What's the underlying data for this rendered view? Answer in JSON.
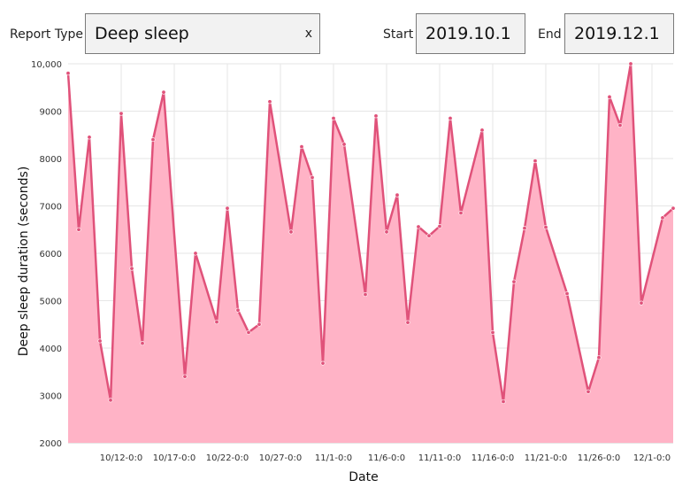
{
  "toolbar": {
    "report_type_label": "Report Type",
    "report_type_value": "Deep sleep",
    "clear_label": "x",
    "start_label": "Start",
    "start_value": "2019.10.1",
    "end_label": "End",
    "end_value": "2019.12.1"
  },
  "colors": {
    "line": "#e0527a",
    "fill": "#ffb3c6",
    "grid": "#e6e6e6"
  },
  "chart_data": {
    "type": "area",
    "xlabel": "Date",
    "ylabel": "Deep sleep duration (seconds)",
    "ylim": [
      2000,
      10000
    ],
    "yticks": [
      2000,
      3000,
      4000,
      5000,
      6000,
      7000,
      8000,
      9000,
      10000
    ],
    "ytick_labels": [
      "2000",
      "3000",
      "4000",
      "5000",
      "6000",
      "7000",
      "8000",
      "9000",
      "10,000"
    ],
    "xlim": [
      "2019-10-07",
      "2019-12-03"
    ],
    "xticks": [
      {
        "date": "2019-10-12",
        "label": "10/12-0:0"
      },
      {
        "date": "2019-10-17",
        "label": "10/17-0:0"
      },
      {
        "date": "2019-10-22",
        "label": "10/22-0:0"
      },
      {
        "date": "2019-10-27",
        "label": "10/27-0:0"
      },
      {
        "date": "2019-11-01",
        "label": "11/1-0:0"
      },
      {
        "date": "2019-11-06",
        "label": "11/6-0:0"
      },
      {
        "date": "2019-11-11",
        "label": "11/11-0:0"
      },
      {
        "date": "2019-11-16",
        "label": "11/16-0:0"
      },
      {
        "date": "2019-11-21",
        "label": "11/21-0:0"
      },
      {
        "date": "2019-11-26",
        "label": "11/26-0:0"
      },
      {
        "date": "2019-12-01",
        "label": "12/1-0:0"
      }
    ],
    "grid": true,
    "series": [
      {
        "x": [
          "2019-10-07",
          "2019-10-08",
          "2019-10-09",
          "2019-10-10",
          "2019-10-11",
          "2019-10-12",
          "2019-10-13",
          "2019-10-14",
          "2019-10-15",
          "2019-10-16",
          "2019-10-18",
          "2019-10-19",
          "2019-10-21",
          "2019-10-22",
          "2019-10-23",
          "2019-10-24",
          "2019-10-25",
          "2019-10-26",
          "2019-10-28",
          "2019-10-29",
          "2019-10-30",
          "2019-10-31",
          "2019-11-01",
          "2019-11-02",
          "2019-11-04",
          "2019-11-05",
          "2019-11-06",
          "2019-11-07",
          "2019-11-08",
          "2019-11-09",
          "2019-11-10",
          "2019-11-11",
          "2019-11-12",
          "2019-11-13",
          "2019-11-15",
          "2019-11-16",
          "2019-11-17",
          "2019-11-18",
          "2019-11-19",
          "2019-11-20",
          "2019-11-21",
          "2019-11-23",
          "2019-11-25",
          "2019-11-26",
          "2019-11-27",
          "2019-11-28",
          "2019-11-29",
          "2019-11-30",
          "2019-12-02",
          "2019-12-03"
        ],
        "values": [
          9800,
          6500,
          8450,
          4150,
          2900,
          8950,
          5680,
          4100,
          8400,
          9400,
          3400,
          6000,
          4550,
          6950,
          4800,
          4330,
          4500,
          9200,
          6450,
          8250,
          7600,
          3680,
          8850,
          8300,
          5130,
          8900,
          6450,
          7230,
          4540,
          6560,
          6370,
          6570,
          8850,
          6850,
          8600,
          4330,
          2870,
          5400,
          6530,
          7950,
          6550,
          5150,
          3080,
          3800,
          9300,
          8700,
          10000,
          4950,
          6750,
          6950
        ]
      }
    ]
  }
}
